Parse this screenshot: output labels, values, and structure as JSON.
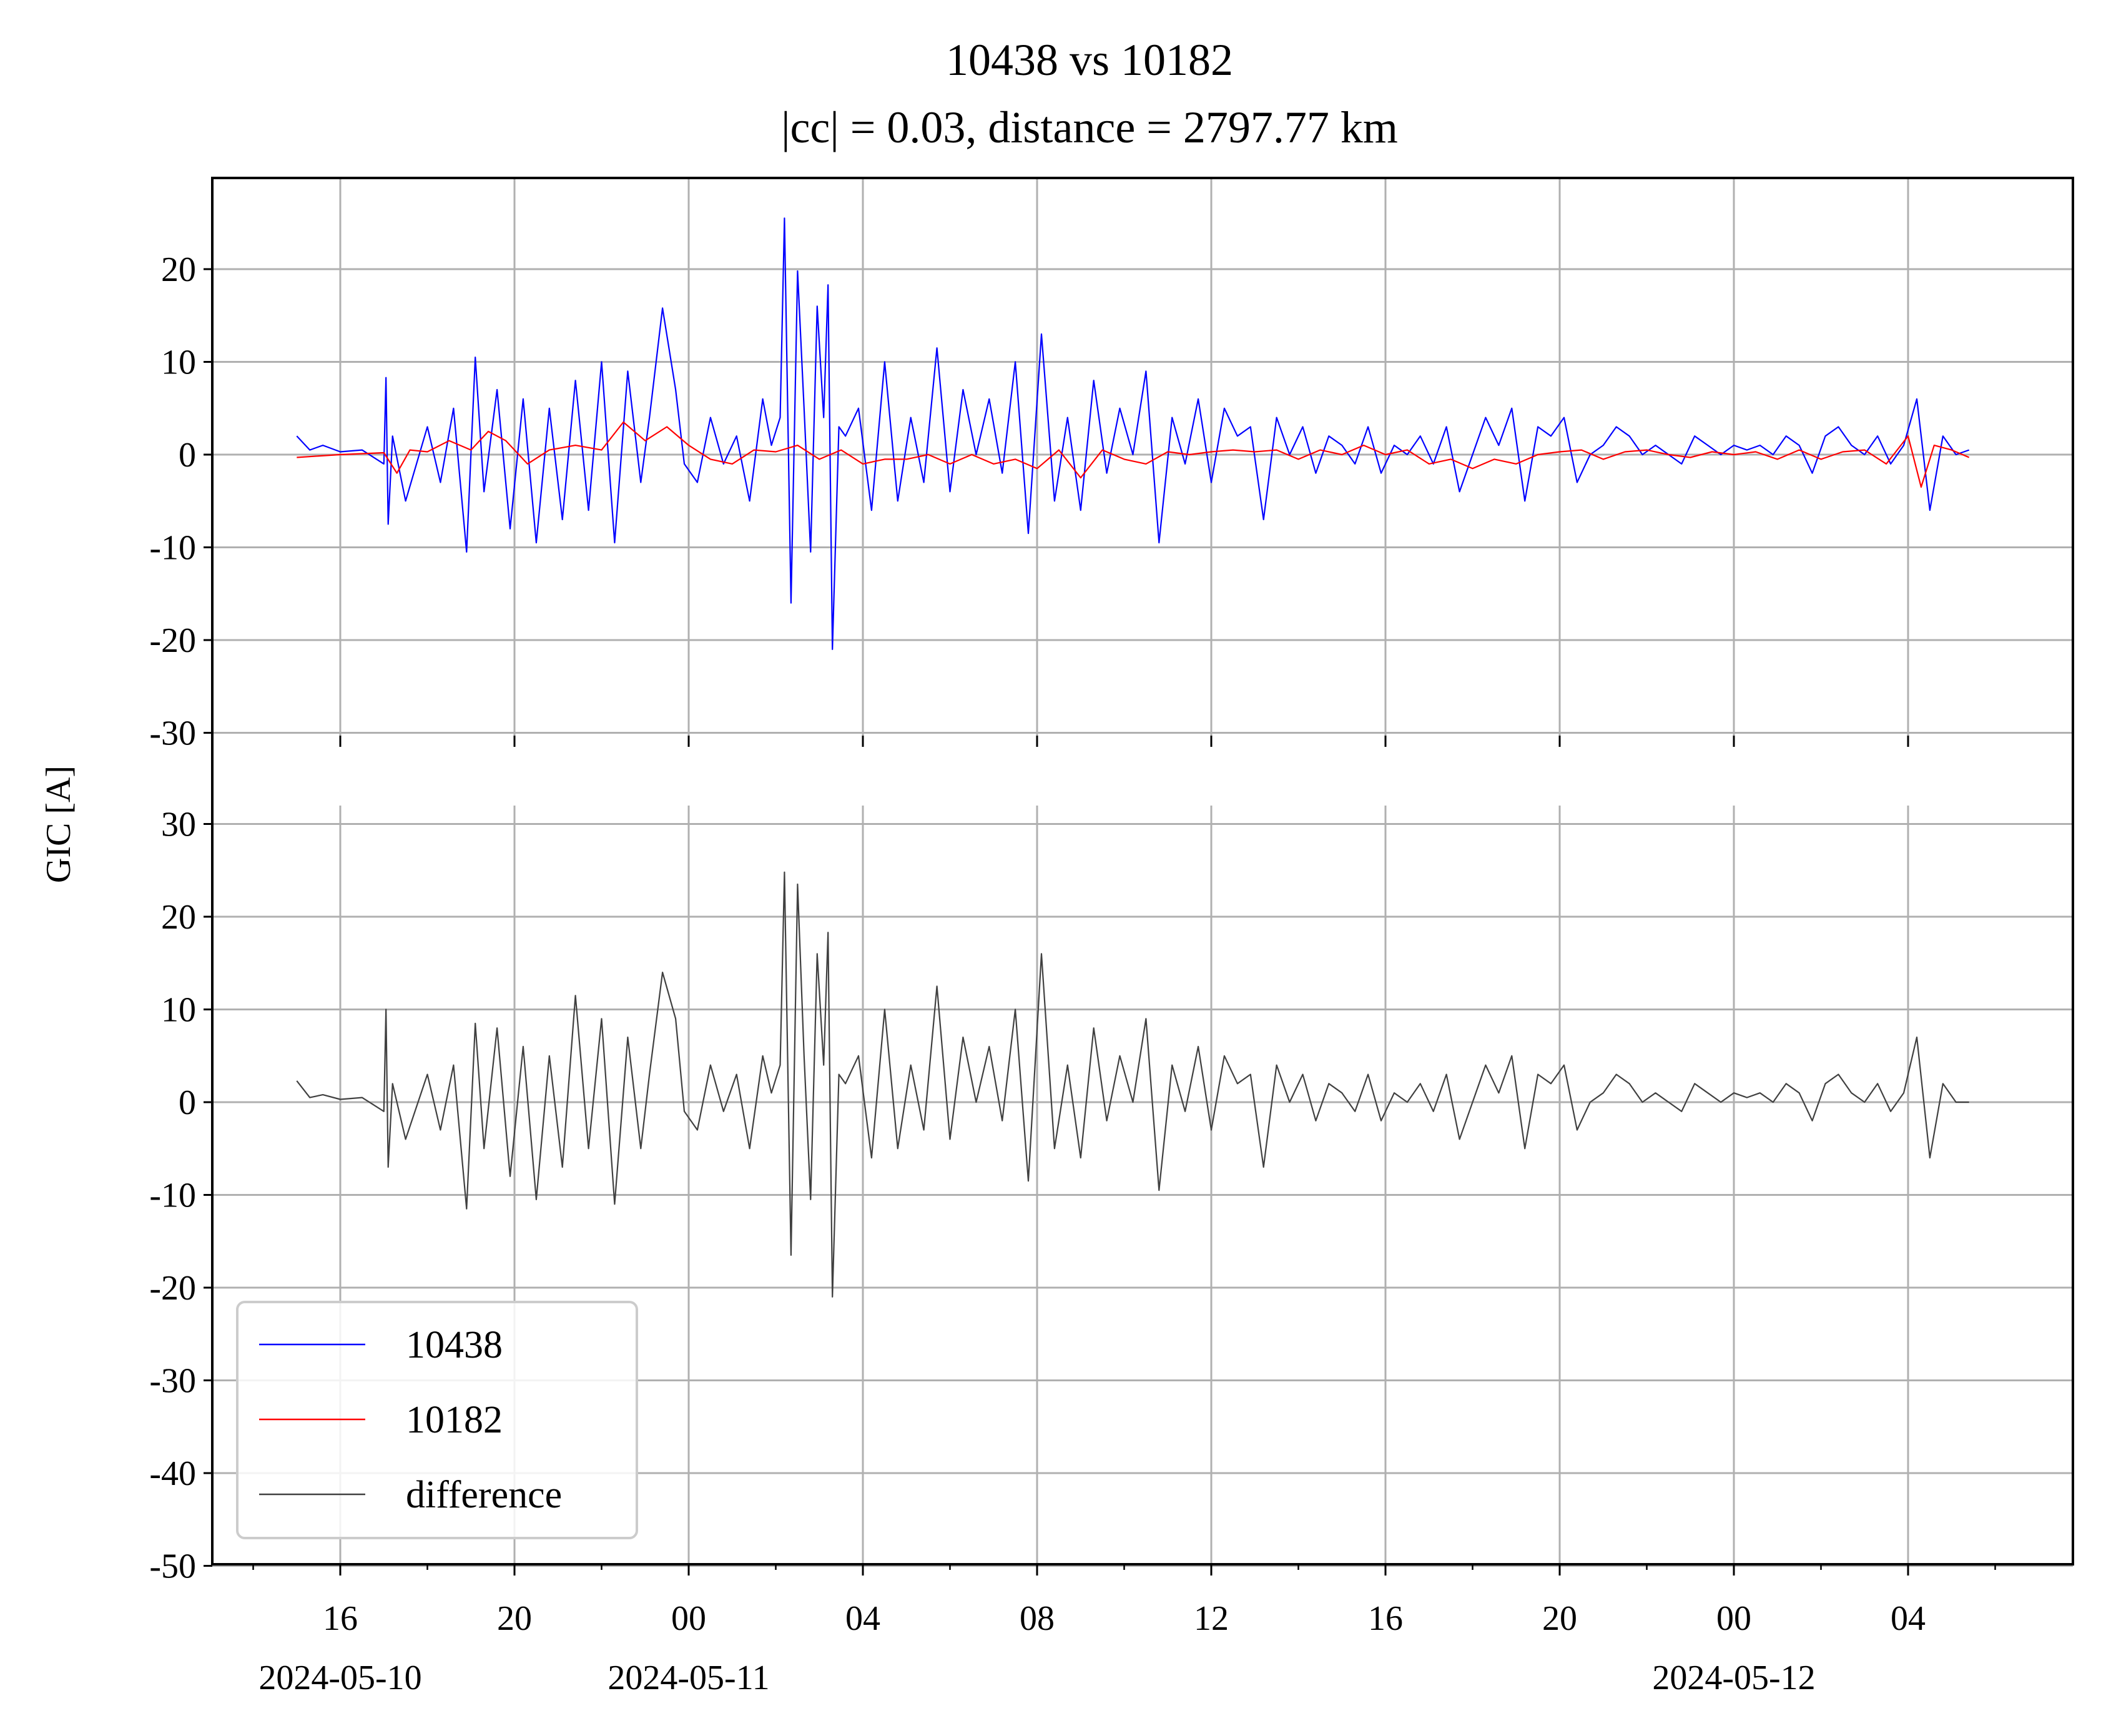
{
  "chart_data": {
    "type": "line",
    "title": "10438 vs 10182",
    "subtitle": "|cc| = 0.03, distance = 2797.77 km",
    "ylabel": "GIC [A]",
    "xlabel": "",
    "x_range": [
      "2024-05-10 13:00",
      "2024-05-12 08:00"
    ],
    "x_tick_labels": [
      "16",
      "20",
      "00",
      "04",
      "08",
      "12",
      "16",
      "20",
      "00",
      "04"
    ],
    "date_labels": [
      {
        "at_hour": 16,
        "text": "2024-05-10"
      },
      {
        "at_hour": 24,
        "text": "2024-05-11"
      },
      {
        "at_hour": 48,
        "text": "2024-05-12"
      }
    ],
    "grid": true,
    "legend_position": "lower-left",
    "panels": [
      {
        "name": "top",
        "ylim": [
          -30,
          30
        ],
        "yticks": [
          -30,
          -20,
          -10,
          0,
          10,
          20
        ],
        "series": [
          {
            "name": "10438",
            "color": "#0000ff",
            "x_hours": [
              15,
              15.3,
              15.6,
              16,
              16.5,
              17,
              17.05,
              17.1,
              17.2,
              17.5,
              18,
              18.3,
              18.6,
              18.9,
              19.1,
              19.3,
              19.6,
              19.9,
              20.2,
              20.5,
              20.8,
              21.1,
              21.4,
              21.7,
              22,
              22.3,
              22.6,
              22.9,
              23.1,
              23.4,
              23.7,
              23.9,
              24.2,
              24.5,
              24.8,
              25.1,
              25.4,
              25.7,
              25.9,
              26.1,
              26.2,
              26.35,
              26.5,
              26.65,
              26.8,
              26.95,
              27.1,
              27.2,
              27.3,
              27.45,
              27.6,
              27.9,
              28.2,
              28.5,
              28.8,
              29.1,
              29.4,
              29.7,
              30,
              30.3,
              30.6,
              30.9,
              31.2,
              31.5,
              31.8,
              32.1,
              32.4,
              32.7,
              33,
              33.3,
              33.6,
              33.9,
              34.2,
              34.5,
              34.8,
              35.1,
              35.4,
              35.7,
              36,
              36.3,
              36.6,
              36.9,
              37.2,
              37.5,
              37.8,
              38.1,
              38.4,
              38.7,
              39,
              39.3,
              39.6,
              39.9,
              40.2,
              40.5,
              40.8,
              41.1,
              41.4,
              41.7,
              42,
              42.3,
              42.6,
              42.9,
              43.2,
              43.5,
              43.8,
              44.1,
              44.4,
              44.7,
              45,
              45.3,
              45.6,
              45.9,
              46.2,
              46.5,
              46.8,
              47.1,
              47.4,
              47.7,
              48,
              48.3,
              48.6,
              48.9,
              49.2,
              49.5,
              49.8,
              50.1,
              50.4,
              50.7,
              51,
              51.3,
              51.6,
              51.9,
              52.2,
              52.5,
              52.8,
              53.1,
              53.4
            ],
            "values": [
              2,
              0.5,
              1,
              0.3,
              0.5,
              -1,
              8.3,
              -7.5,
              2,
              -5,
              3,
              -3,
              5,
              -10.5,
              10.5,
              -4,
              7,
              -8,
              6,
              -9.5,
              5,
              -7,
              8,
              -6,
              10,
              -9.5,
              9,
              -3,
              4,
              15.8,
              7,
              -1,
              -3,
              4,
              -1,
              2,
              -5,
              6,
              1,
              4,
              25.5,
              -16,
              19.8,
              5,
              -10.5,
              16,
              4,
              18.3,
              -21,
              3,
              2,
              5,
              -6,
              10,
              -5,
              4,
              -3,
              11.5,
              -4,
              7,
              0,
              6,
              -2,
              10,
              -8.5,
              13,
              -5,
              4,
              -6,
              8,
              -2,
              5,
              0,
              9,
              -9.5,
              4,
              -1,
              6,
              -3,
              5,
              2,
              3,
              -7,
              4,
              0,
              3,
              -2,
              2,
              1,
              -1,
              3,
              -2,
              1,
              0,
              2,
              -1,
              3,
              -4,
              0,
              4,
              1,
              5,
              -5,
              3,
              2,
              4,
              -3,
              0,
              1,
              3,
              2,
              0,
              1,
              0,
              -1,
              2,
              1,
              0,
              1,
              0.5,
              1,
              0,
              2,
              1,
              -2,
              2,
              3,
              1,
              0,
              2,
              -1,
              1,
              6,
              -6,
              2,
              0,
              0.5
            ]
          },
          {
            "name": "10182",
            "color": "#ff0000",
            "x_hours": [
              15,
              16,
              17,
              17.3,
              17.6,
              18,
              18.5,
              19,
              19.4,
              19.8,
              20.3,
              20.8,
              21.4,
              22,
              22.5,
              23,
              23.5,
              24,
              24.5,
              25,
              25.5,
              26,
              26.5,
              27,
              27.5,
              28,
              28.5,
              29,
              29.5,
              30,
              30.5,
              31,
              31.5,
              32,
              32.5,
              33,
              33.5,
              34,
              34.5,
              35,
              35.5,
              36,
              36.5,
              37,
              37.5,
              38,
              38.5,
              39,
              39.5,
              40,
              40.5,
              41,
              41.5,
              42,
              42.5,
              43,
              43.5,
              44,
              44.5,
              45,
              45.5,
              46,
              46.5,
              47,
              47.5,
              48,
              48.5,
              49,
              49.5,
              50,
              50.5,
              51,
              51.5,
              52,
              52.3,
              52.6,
              53,
              53.4
            ],
            "values": [
              -0.3,
              0,
              0.2,
              -2,
              0.5,
              0.3,
              1.5,
              0.5,
              2.5,
              1.5,
              -1,
              0.5,
              1,
              0.5,
              3.5,
              1.5,
              3,
              1,
              -0.5,
              -1,
              0.5,
              0.3,
              1,
              -0.5,
              0.5,
              -1,
              -0.5,
              -0.5,
              0,
              -1,
              0,
              -1,
              -0.5,
              -1.5,
              0.5,
              -2.5,
              0.5,
              -0.5,
              -1,
              0.3,
              0,
              0.3,
              0.5,
              0.3,
              0.5,
              -0.5,
              0.5,
              0,
              1,
              0,
              0.5,
              -1,
              -0.5,
              -1.5,
              -0.5,
              -1,
              0,
              0.3,
              0.5,
              -0.5,
              0.3,
              0.5,
              0,
              -0.3,
              0.3,
              0,
              0.3,
              -0.5,
              0.5,
              -0.5,
              0.3,
              0.5,
              -1,
              2,
              -3.5,
              1,
              0.5,
              -0.3
            ]
          }
        ]
      },
      {
        "name": "bottom",
        "ylim": [
          -50,
          32
        ],
        "yticks": [
          -50,
          -40,
          -30,
          -20,
          -10,
          0,
          10,
          20,
          30
        ],
        "series": [
          {
            "name": "difference",
            "color": "#404040",
            "x_hours": [
              15,
              15.3,
              15.6,
              16,
              16.5,
              17,
              17.05,
              17.1,
              17.2,
              17.5,
              18,
              18.3,
              18.6,
              18.9,
              19.1,
              19.3,
              19.6,
              19.9,
              20.2,
              20.5,
              20.8,
              21.1,
              21.4,
              21.7,
              22,
              22.3,
              22.6,
              22.9,
              23.1,
              23.4,
              23.7,
              23.9,
              24.2,
              24.5,
              24.8,
              25.1,
              25.4,
              25.7,
              25.9,
              26.1,
              26.2,
              26.35,
              26.5,
              26.65,
              26.8,
              26.95,
              27.1,
              27.2,
              27.3,
              27.45,
              27.6,
              27.9,
              28.2,
              28.5,
              28.8,
              29.1,
              29.4,
              29.7,
              30,
              30.3,
              30.6,
              30.9,
              31.2,
              31.5,
              31.8,
              32.1,
              32.4,
              32.7,
              33,
              33.3,
              33.6,
              33.9,
              34.2,
              34.5,
              34.8,
              35.1,
              35.4,
              35.7,
              36,
              36.3,
              36.6,
              36.9,
              37.2,
              37.5,
              37.8,
              38.1,
              38.4,
              38.7,
              39,
              39.3,
              39.6,
              39.9,
              40.2,
              40.5,
              40.8,
              41.1,
              41.4,
              41.7,
              42,
              42.3,
              42.6,
              42.9,
              43.2,
              43.5,
              43.8,
              44.1,
              44.4,
              44.7,
              45,
              45.3,
              45.6,
              45.9,
              46.2,
              46.5,
              46.8,
              47.1,
              47.4,
              47.7,
              48,
              48.3,
              48.6,
              48.9,
              49.2,
              49.5,
              49.8,
              50.1,
              50.4,
              50.7,
              51,
              51.3,
              51.6,
              51.9,
              52.2,
              52.5,
              52.8,
              53.1,
              53.4
            ],
            "values": [
              2.3,
              0.5,
              0.8,
              0.3,
              0.5,
              -1,
              10,
              -7,
              2,
              -4,
              3,
              -3,
              4,
              -11.5,
              8.5,
              -5,
              8,
              -8,
              6,
              -10.5,
              5,
              -7,
              11.5,
              -5,
              9,
              -11,
              7,
              -5,
              3,
              14,
              9,
              -1,
              -3,
              4,
              -1,
              3,
              -5,
              5,
              1,
              4,
              24.8,
              -16.5,
              23.5,
              5,
              -10.5,
              16,
              4,
              18.3,
              -21,
              3,
              2,
              5,
              -6,
              10,
              -5,
              4,
              -3,
              12.5,
              -4,
              7,
              0,
              6,
              -2,
              10,
              -8.5,
              16,
              -5,
              4,
              -6,
              8,
              -2,
              5,
              0,
              9,
              -9.5,
              4,
              -1,
              6,
              -3,
              5,
              2,
              3,
              -7,
              4,
              0,
              3,
              -2,
              2,
              1,
              -1,
              3,
              -2,
              1,
              0,
              2,
              -1,
              3,
              -4,
              0,
              4,
              1,
              5,
              -5,
              3,
              2,
              4,
              -3,
              0,
              1,
              3,
              2,
              0,
              1,
              0,
              -1,
              2,
              1,
              0,
              1,
              0.5,
              1,
              0,
              2,
              1,
              -2,
              2,
              3,
              1,
              0,
              2,
              -1,
              1,
              7,
              -6,
              2,
              0,
              0
            ]
          }
        ]
      }
    ],
    "legend": [
      "10438",
      "10182",
      "difference"
    ]
  }
}
